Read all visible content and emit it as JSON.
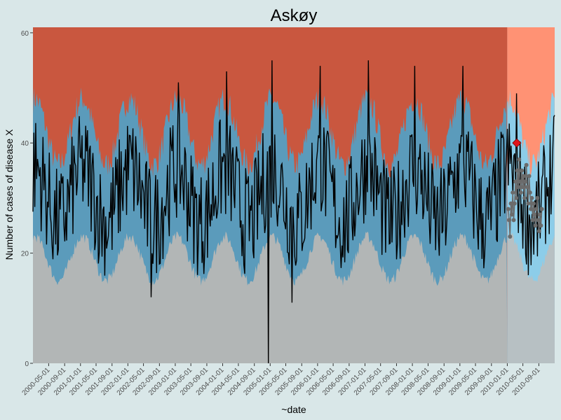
{
  "chart_data": {
    "type": "area",
    "title": "Askøy",
    "xlabel": "~date",
    "ylabel": "Number of cases of disease X",
    "ylim": [
      0,
      61
    ],
    "xlim": [
      "2000-01-01",
      "2011-01-01"
    ],
    "yticks": [
      0,
      20,
      40,
      60
    ],
    "xtick_labels": [
      "2000-05-01",
      "2000-09-01",
      "2001-01-01",
      "2001-05-01",
      "2001-09-01",
      "2002-01-01",
      "2002-05-01",
      "2002-09-01",
      "2003-01-01",
      "2003-05-01",
      "2003-09-01",
      "2004-01-01",
      "2004-05-01",
      "2004-09-01",
      "2005-01-01",
      "2005-05-01",
      "2005-09-01",
      "2006-01-01",
      "2006-05-01",
      "2006-09-01",
      "2007-01-01",
      "2007-05-01",
      "2007-09-01",
      "2008-01-01",
      "2008-05-01",
      "2008-09-01",
      "2009-01-01",
      "2009-05-01",
      "2009-09-01",
      "2010-01-01",
      "2010-05-01",
      "2010-09-01"
    ],
    "forecast_start": "2010-01-01",
    "colors": {
      "background": "#d9e7e8",
      "low_zone": "#b2b6b6",
      "normal_zone": "#5b9bbb",
      "high_zone": "#c9573f",
      "low_zone_forecast": "#b7c0c3",
      "normal_zone_forecast": "#8ccde9",
      "high_zone_forecast": "#ff9274",
      "observed_line": "#000000",
      "forecast_points": "#6b6b6b",
      "alert_marker": "#e0141b"
    },
    "seasonal_bands": {
      "low_upper": {
        "base": 19,
        "amplitude": 4,
        "peak_month": 1
      },
      "normal_upper": {
        "base": 42,
        "amplitude": 6,
        "peak_month": 1
      }
    },
    "observed_peaks": [
      {
        "date": "2003-01-26",
        "value": 51
      },
      {
        "date": "2004-01-28",
        "value": 53
      },
      {
        "date": "2005-01-14",
        "value": 55
      },
      {
        "date": "2006-01-20",
        "value": 54
      },
      {
        "date": "2007-01-25",
        "value": 55
      },
      {
        "date": "2008-01-18",
        "value": 54
      },
      {
        "date": "2009-01-24",
        "value": 54
      },
      {
        "date": "2010-03-16",
        "value": 49
      }
    ],
    "observed_dips": [
      {
        "date": "2002-06-28",
        "value": 12
      },
      {
        "date": "2004-12-15",
        "value": 0
      },
      {
        "date": "2005-06-20",
        "value": 11
      },
      {
        "date": "2010-06-15",
        "value": 16
      }
    ],
    "forecast_points": [
      {
        "date": "2010-01-08",
        "value": 28
      },
      {
        "date": "2010-01-15",
        "value": 26
      },
      {
        "date": "2010-01-22",
        "value": 23
      },
      {
        "date": "2010-01-29",
        "value": 29
      },
      {
        "date": "2010-02-05",
        "value": 27
      },
      {
        "date": "2010-02-12",
        "value": 31
      },
      {
        "date": "2010-02-19",
        "value": 26
      },
      {
        "date": "2010-02-26",
        "value": 29
      },
      {
        "date": "2010-03-05",
        "value": 33
      },
      {
        "date": "2010-03-12",
        "value": 30
      },
      {
        "date": "2010-03-19",
        "value": 35
      },
      {
        "date": "2010-03-26",
        "value": 32
      },
      {
        "date": "2010-04-02",
        "value": 37
      },
      {
        "date": "2010-04-09",
        "value": 33
      },
      {
        "date": "2010-04-16",
        "value": 31
      },
      {
        "date": "2010-04-23",
        "value": 35
      },
      {
        "date": "2010-04-30",
        "value": 32
      },
      {
        "date": "2010-05-07",
        "value": 34
      },
      {
        "date": "2010-05-14",
        "value": 30
      },
      {
        "date": "2010-05-21",
        "value": 33
      },
      {
        "date": "2010-05-28",
        "value": 36
      },
      {
        "date": "2010-06-04",
        "value": 32
      },
      {
        "date": "2010-06-11",
        "value": 29
      },
      {
        "date": "2010-06-18",
        "value": 34
      },
      {
        "date": "2010-06-25",
        "value": 31
      },
      {
        "date": "2010-07-02",
        "value": 28
      },
      {
        "date": "2010-07-09",
        "value": 30
      },
      {
        "date": "2010-07-16",
        "value": 26
      },
      {
        "date": "2010-07-23",
        "value": 29
      },
      {
        "date": "2010-07-30",
        "value": 27
      },
      {
        "date": "2010-08-06",
        "value": 25
      },
      {
        "date": "2010-08-13",
        "value": 28
      },
      {
        "date": "2010-08-20",
        "value": 30
      },
      {
        "date": "2010-08-27",
        "value": 26
      },
      {
        "date": "2010-09-03",
        "value": 24
      },
      {
        "date": "2010-09-10",
        "value": 27
      },
      {
        "date": "2010-09-17",
        "value": 25
      },
      {
        "date": "2010-09-24",
        "value": 28
      }
    ],
    "alert_point": {
      "date": "2010-03-15",
      "value": 40
    },
    "grid": false,
    "legend": "none"
  }
}
